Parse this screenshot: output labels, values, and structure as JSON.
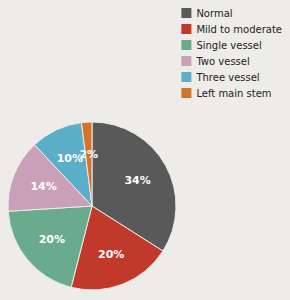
{
  "chart_data": {
    "type": "pie",
    "categories": [
      "Normal",
      "Mild to moderate",
      "Single vessel",
      "Two vessel",
      "Three vessel",
      "Left main stem"
    ],
    "values": [
      34,
      20,
      20,
      14,
      10,
      2
    ],
    "value_labels": [
      "34%",
      "20%",
      "20%",
      "14%",
      "10%",
      "2%"
    ],
    "colors": [
      "#595959",
      "#c0392b",
      "#6aab8e",
      "#c9a0b8",
      "#5baec7",
      "#d4732a"
    ],
    "data_labels": true,
    "legend": "upper right"
  }
}
